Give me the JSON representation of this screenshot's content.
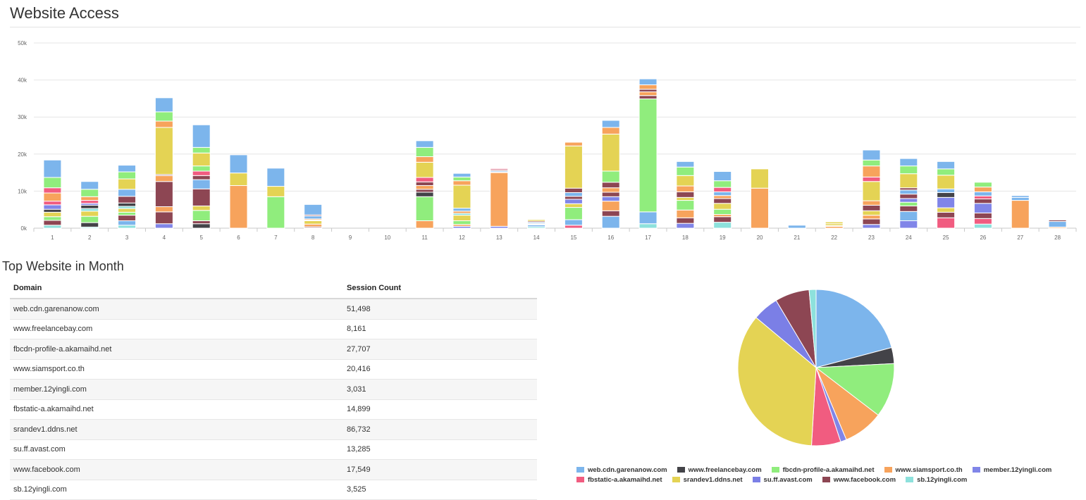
{
  "page": {
    "title": "Website Access"
  },
  "chart_data": [
    {
      "type": "bar",
      "stacked": true,
      "title": "Website Access",
      "ylim": [
        0,
        50000
      ],
      "yticks": [
        0,
        10000,
        20000,
        30000,
        40000,
        50000
      ],
      "ytick_labels": [
        "0k",
        "10k",
        "20k",
        "30k",
        "40k",
        "50k"
      ],
      "categories": [
        "1",
        "2",
        "3",
        "4",
        "5",
        "6",
        "7",
        "8",
        "9",
        "10",
        "11",
        "12",
        "13",
        "14",
        "15",
        "16",
        "17",
        "18",
        "19",
        "20",
        "21",
        "22",
        "23",
        "24",
        "25",
        "26",
        "27",
        "28"
      ],
      "series": [
        {
          "name": "sb.12yingli.com",
          "color": "#8de1dc",
          "values": [
            800,
            300,
            800,
            0,
            0,
            0,
            0,
            100,
            0,
            0,
            0,
            0,
            0,
            400,
            0,
            0,
            1200,
            0,
            1600,
            0,
            0,
            0,
            0,
            0,
            0,
            1100,
            0,
            0
          ]
        },
        {
          "name": "member.12yingli.com",
          "color": "#8085e8",
          "values": [
            0,
            0,
            0,
            1200,
            0,
            0,
            0,
            0,
            0,
            0,
            0,
            500,
            500,
            0,
            0,
            0,
            0,
            1300,
            0,
            0,
            0,
            0,
            1000,
            2000,
            0,
            0,
            0,
            0
          ]
        },
        {
          "name": "fbstatic-a.akamaihd.net",
          "color": "#f15c80",
          "values": [
            0,
            0,
            0,
            0,
            0,
            0,
            0,
            0,
            0,
            0,
            0,
            0,
            0,
            0,
            800,
            0,
            0,
            0,
            0,
            0,
            0,
            0,
            0,
            0,
            2800,
            1500,
            0,
            0
          ]
        },
        {
          "name": "su.ff.avast.com",
          "color": "#7cb5ec",
          "values": [
            0,
            0,
            1200,
            0,
            0,
            0,
            0,
            0,
            0,
            0,
            0,
            0,
            0,
            500,
            1500,
            3200,
            3200,
            0,
            0,
            0,
            0,
            0,
            0,
            2500,
            0,
            0,
            0,
            0
          ]
        },
        {
          "name": "www.freelancebay.com",
          "color": "#434348",
          "values": [
            0,
            1200,
            0,
            0,
            1200,
            0,
            0,
            0,
            0,
            0,
            0,
            0,
            0,
            0,
            0,
            0,
            0,
            0,
            0,
            0,
            0,
            0,
            0,
            0,
            0,
            0,
            0,
            0
          ]
        },
        {
          "name": "www.facebook.com",
          "color": "#8d4653",
          "values": [
            1300,
            0,
            1500,
            3200,
            800,
            0,
            0,
            300,
            0,
            0,
            0,
            0,
            0,
            0,
            0,
            1500,
            0,
            1500,
            1500,
            0,
            0,
            0,
            1500,
            1500,
            1500,
            1500,
            0,
            0
          ]
        },
        {
          "name": "www.siamsport.co.th",
          "color": "#f7a35c",
          "values": [
            0,
            0,
            0,
            1400,
            0,
            11500,
            0,
            700,
            0,
            0,
            2000,
            500,
            14500,
            200,
            0,
            2600,
            0,
            2100,
            600,
            10800,
            0,
            500,
            1000,
            0,
            0,
            0,
            7500,
            300
          ]
        },
        {
          "name": "fbcdn-profile-a.akamaihd.net",
          "color": "#90ed7d",
          "values": [
            1000,
            1700,
            800,
            0,
            2800,
            0,
            8500,
            0,
            0,
            0,
            6500,
            1000,
            0,
            0,
            3300,
            0,
            30500,
            2600,
            1400,
            0,
            0,
            0,
            0,
            1000,
            0,
            0,
            0,
            0
          ]
        },
        {
          "name": "srandev1.ddns.net",
          "color": "#e4d354",
          "values": [
            1200,
            1400,
            1000,
            0,
            1200,
            0,
            0,
            900,
            0,
            0,
            0,
            1500,
            0,
            0,
            1000,
            0,
            0,
            800,
            1600,
            0,
            0,
            0,
            1200,
            0,
            1200,
            0,
            0,
            0
          ]
        },
        {
          "name": "sb.12yingli.com",
          "color": "#8de1dc",
          "values": [
            0,
            700,
            600,
            0,
            0,
            0,
            0,
            0,
            0,
            0,
            0,
            500,
            0,
            0,
            0,
            0,
            0,
            0,
            0,
            0,
            0,
            0,
            0,
            0,
            0,
            0,
            0,
            0
          ]
        },
        {
          "name": "www.freelancebay.com",
          "color": "#434348",
          "values": [
            800,
            900,
            900,
            0,
            0,
            0,
            0,
            0,
            0,
            0,
            1200,
            0,
            0,
            0,
            0,
            0,
            0,
            0,
            0,
            0,
            0,
            0,
            0,
            0,
            0,
            0,
            0,
            0
          ]
        },
        {
          "name": "member.12yingli.com",
          "color": "#8085e8",
          "values": [
            1200,
            500,
            0,
            0,
            0,
            0,
            0,
            0,
            0,
            0,
            0,
            0,
            0,
            0,
            1200,
            1200,
            0,
            0,
            0,
            0,
            0,
            0,
            0,
            1000,
            2800,
            2600,
            0,
            0
          ]
        },
        {
          "name": "www.facebook.com",
          "color": "#8d4653",
          "values": [
            0,
            0,
            1800,
            6800,
            4600,
            0,
            0,
            0,
            0,
            0,
            800,
            0,
            0,
            200,
            800,
            1200,
            900,
            1500,
            1300,
            0,
            0,
            0,
            1500,
            1200,
            0,
            1200,
            0,
            0
          ]
        },
        {
          "name": "fbstatic-a.akamaihd.net",
          "color": "#f15c80",
          "values": [
            1000,
            800,
            0,
            0,
            0,
            0,
            0,
            200,
            0,
            0,
            0,
            0,
            0,
            0,
            0,
            0,
            0,
            0,
            0,
            0,
            0,
            0,
            0,
            0,
            0,
            800,
            0,
            0
          ]
        },
        {
          "name": "www.siamsport.co.th",
          "color": "#f7a35c",
          "values": [
            2200,
            1000,
            0,
            1600,
            0,
            0,
            0,
            300,
            0,
            0,
            1000,
            600,
            200,
            0,
            0,
            1200,
            1000,
            1600,
            800,
            0,
            0,
            0,
            1200,
            0,
            0,
            0,
            0,
            0
          ]
        },
        {
          "name": "www.freelancebay.com",
          "color": "#434348",
          "values": [
            0,
            0,
            0,
            0,
            0,
            0,
            0,
            0,
            0,
            0,
            0,
            0,
            0,
            0,
            0,
            0,
            0,
            0,
            0,
            0,
            0,
            0,
            0,
            0,
            1300,
            0,
            0,
            0
          ]
        },
        {
          "name": "su.ff.avast.com",
          "color": "#7cb5ec",
          "values": [
            0,
            0,
            1900,
            0,
            2500,
            0,
            0,
            800,
            0,
            0,
            0,
            800,
            300,
            300,
            1000,
            0,
            0,
            0,
            1000,
            0,
            800,
            200,
            0,
            1100,
            1000,
            1100,
            800,
            1500
          ]
        },
        {
          "name": "www.facebook.com",
          "color": "#8d4653",
          "values": [
            0,
            0,
            0,
            300,
            1100,
            0,
            0,
            300,
            0,
            0,
            1000,
            0,
            300,
            300,
            1200,
            1500,
            700,
            0,
            0,
            0,
            0,
            0,
            0,
            600,
            0,
            0,
            0,
            400
          ]
        },
        {
          "name": "srandev1.ddns.net",
          "color": "#e4d354",
          "values": [
            0,
            0,
            2800,
            12700,
            0,
            0,
            0,
            0,
            0,
            0,
            0,
            6200,
            0,
            400,
            0,
            0,
            0,
            0,
            0,
            0,
            0,
            500,
            5200,
            0,
            0,
            0,
            0,
            0
          ]
        },
        {
          "name": "fbstatic-a.akamaihd.net",
          "color": "#f15c80",
          "values": [
            1400,
            0,
            0,
            0,
            1200,
            0,
            0,
            0,
            0,
            0,
            1200,
            0,
            300,
            0,
            0,
            0,
            0,
            0,
            1200,
            0,
            0,
            0,
            1200,
            0,
            0,
            0,
            0,
            0
          ]
        },
        {
          "name": "fbcdn-profile-a.akamaihd.net",
          "color": "#90ed7d",
          "values": [
            2800,
            2000,
            1900,
            0,
            1400,
            0,
            0,
            0,
            0,
            0,
            0,
            0,
            0,
            0,
            0,
            3000,
            0,
            0,
            0,
            0,
            0,
            0,
            0,
            0,
            0,
            0,
            0,
            0
          ]
        },
        {
          "name": "srandev1.ddns.net",
          "color": "#e4d354",
          "values": [
            0,
            0,
            0,
            0,
            3500,
            3400,
            2800,
            0,
            0,
            0,
            4100,
            0,
            0,
            0,
            11400,
            10000,
            0,
            2800,
            0,
            5200,
            0,
            500,
            0,
            3800,
            3700,
            0,
            0,
            0
          ]
        },
        {
          "name": "www.siamsport.co.th",
          "color": "#f7a35c",
          "values": [
            0,
            0,
            0,
            1700,
            0,
            0,
            0,
            0,
            0,
            0,
            1500,
            1200,
            0,
            0,
            1000,
            1800,
            1200,
            0,
            0,
            0,
            0,
            0,
            3000,
            0,
            0,
            1300,
            0,
            0
          ]
        },
        {
          "name": "fbcdn-profile-a.akamaihd.net",
          "color": "#90ed7d",
          "values": [
            0,
            0,
            0,
            2500,
            1500,
            0,
            0,
            0,
            0,
            0,
            2500,
            1000,
            0,
            0,
            0,
            0,
            0,
            2300,
            1800,
            0,
            0,
            0,
            1600,
            2100,
            1700,
            1300,
            0,
            0
          ]
        },
        {
          "name": "su.ff.avast.com",
          "color": "#7cb5ec",
          "values": [
            4700,
            2100,
            1800,
            3800,
            6100,
            4900,
            4900,
            2800,
            0,
            0,
            1800,
            1000,
            0,
            0,
            0,
            1900,
            1600,
            1500,
            2500,
            0,
            0,
            0,
            2700,
            2000,
            2000,
            0,
            500,
            0
          ]
        }
      ]
    },
    {
      "type": "pie",
      "title": "Top Website in Month",
      "labels": [
        "web.cdn.garenanow.com",
        "www.freelancebay.com",
        "fbcdn-profile-a.akamaihd.net",
        "www.siamsport.co.th",
        "member.12yingli.com",
        "fbstatic-a.akamaihd.net",
        "srandev1.ddns.net",
        "su.ff.avast.com",
        "www.facebook.com",
        "sb.12yingli.com"
      ],
      "values": [
        51498,
        8161,
        27707,
        20416,
        3031,
        14899,
        86732,
        13285,
        17549,
        3525
      ],
      "colors": [
        "#7cb5ec",
        "#434348",
        "#90ed7d",
        "#f7a35c",
        "#8085e8",
        "#f15c80",
        "#e4d354",
        "#7b7fe6",
        "#8d4653",
        "#8de1dc"
      ]
    }
  ],
  "top_sites": {
    "title": "Top Website in Month",
    "headers": {
      "domain": "Domain",
      "count": "Session Count"
    },
    "rows": [
      {
        "domain": "web.cdn.garenanow.com",
        "count": "51,498"
      },
      {
        "domain": "www.freelancebay.com",
        "count": "8,161"
      },
      {
        "domain": "fbcdn-profile-a.akamaihd.net",
        "count": "27,707"
      },
      {
        "domain": "www.siamsport.co.th",
        "count": "20,416"
      },
      {
        "domain": "member.12yingli.com",
        "count": "3,031"
      },
      {
        "domain": "fbstatic-a.akamaihd.net",
        "count": "14,899"
      },
      {
        "domain": "srandev1.ddns.net",
        "count": "86,732"
      },
      {
        "domain": "su.ff.avast.com",
        "count": "13,285"
      },
      {
        "domain": "www.facebook.com",
        "count": "17,549"
      },
      {
        "domain": "sb.12yingli.com",
        "count": "3,525"
      }
    ]
  },
  "legend": {
    "rows": [
      [
        {
          "label": "web.cdn.garenanow.com",
          "color": "#7cb5ec"
        },
        {
          "label": "www.freelancebay.com",
          "color": "#434348"
        },
        {
          "label": "fbcdn-profile-a.akamaihd.net",
          "color": "#90ed7d"
        },
        {
          "label": "www.siamsport.co.th",
          "color": "#f7a35c"
        },
        {
          "label": "member.12yingli.com",
          "color": "#8085e8"
        }
      ],
      [
        {
          "label": "fbstatic-a.akamaihd.net",
          "color": "#f15c80"
        },
        {
          "label": "srandev1.ddns.net",
          "color": "#e4d354"
        },
        {
          "label": "su.ff.avast.com",
          "color": "#7b7fe6"
        },
        {
          "label": "www.facebook.com",
          "color": "#8d4653"
        },
        {
          "label": "sb.12yingli.com",
          "color": "#8de1dc"
        }
      ]
    ]
  }
}
